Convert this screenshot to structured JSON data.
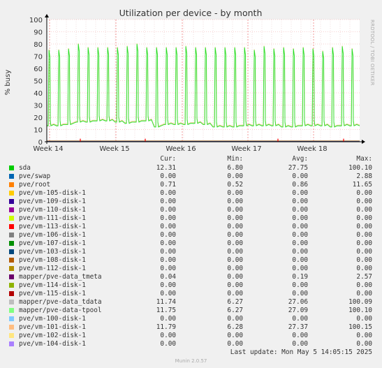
{
  "chart_data": {
    "type": "line",
    "title": "Utilization per device - by month",
    "ylabel": "% busy",
    "xlabel": "",
    "ylim": [
      0,
      100
    ],
    "yticks": [
      "0",
      "10",
      "20",
      "30",
      "40",
      "50",
      "60",
      "70",
      "80",
      "90",
      "100"
    ],
    "xticks": [
      "Week 14",
      "Week 15",
      "Week 16",
      "Week 17",
      "Week 18"
    ],
    "grid": true,
    "days": 32,
    "series": [
      {
        "name": "sda",
        "color": "#00cc00",
        "base": [
          13,
          13,
          14,
          16,
          16,
          17,
          17,
          16,
          15,
          16,
          17,
          12,
          14,
          14,
          14,
          15,
          14,
          12,
          12,
          12,
          13,
          13,
          13,
          13,
          12,
          12,
          13,
          13,
          13,
          12,
          13,
          13
        ],
        "peak": [
          75,
          75,
          76,
          80,
          77,
          77,
          77,
          77,
          78,
          80,
          77,
          77,
          77,
          77,
          78,
          77,
          77,
          77,
          77,
          77,
          77,
          75,
          78,
          76,
          77,
          76,
          77,
          76,
          74,
          77,
          78,
          76
        ]
      },
      {
        "name": "pve/vm-101-disk-1",
        "color": "#ffbd80"
      },
      {
        "name": "mapper/pve-data-tpool",
        "color": "#80ff80"
      }
    ],
    "near_zero_series": [
      {
        "name": "pve/root",
        "color": "#ff8000"
      },
      {
        "name": "pve/swap",
        "color": "#0066b3"
      },
      {
        "name": "pve/vm-113-disk-1",
        "color": "#ff0000"
      }
    ]
  },
  "legend": {
    "headers": {
      "cur": "Cur:",
      "min": "Min:",
      "avg": "Avg:",
      "max": "Max:"
    },
    "rows": [
      {
        "name": "sda",
        "color": "#00cc00",
        "cur": "12.31",
        "min": "6.80",
        "avg": "27.75",
        "max": "100.10"
      },
      {
        "name": "pve/swap",
        "color": "#0066b3",
        "cur": "0.00",
        "min": "0.00",
        "avg": "0.00",
        "max": "2.88"
      },
      {
        "name": "pve/root",
        "color": "#ff8000",
        "cur": "0.71",
        "min": "0.52",
        "avg": "0.86",
        "max": "11.65"
      },
      {
        "name": "pve/vm-105-disk-1",
        "color": "#ffcc00",
        "cur": "0.00",
        "min": "0.00",
        "avg": "0.00",
        "max": "0.00"
      },
      {
        "name": "pve/vm-109-disk-1",
        "color": "#330099",
        "cur": "0.00",
        "min": "0.00",
        "avg": "0.00",
        "max": "0.00"
      },
      {
        "name": "pve/vm-110-disk-1",
        "color": "#990099",
        "cur": "0.00",
        "min": "0.00",
        "avg": "0.00",
        "max": "0.00"
      },
      {
        "name": "pve/vm-111-disk-1",
        "color": "#ccff00",
        "cur": "0.00",
        "min": "0.00",
        "avg": "0.00",
        "max": "0.00"
      },
      {
        "name": "pve/vm-113-disk-1",
        "color": "#ff0000",
        "cur": "0.00",
        "min": "0.00",
        "avg": "0.00",
        "max": "0.00"
      },
      {
        "name": "pve/vm-106-disk-1",
        "color": "#808080",
        "cur": "0.00",
        "min": "0.00",
        "avg": "0.00",
        "max": "0.00"
      },
      {
        "name": "pve/vm-107-disk-1",
        "color": "#008f00",
        "cur": "0.00",
        "min": "0.00",
        "avg": "0.00",
        "max": "0.00"
      },
      {
        "name": "pve/vm-103-disk-1",
        "color": "#00487d",
        "cur": "0.00",
        "min": "0.00",
        "avg": "0.00",
        "max": "0.00"
      },
      {
        "name": "pve/vm-108-disk-1",
        "color": "#b35a00",
        "cur": "0.00",
        "min": "0.00",
        "avg": "0.00",
        "max": "0.00"
      },
      {
        "name": "pve/vm-112-disk-1",
        "color": "#b38f00",
        "cur": "0.00",
        "min": "0.00",
        "avg": "0.00",
        "max": "0.00"
      },
      {
        "name": "mapper/pve-data_tmeta",
        "color": "#6b006b",
        "cur": "0.04",
        "min": "0.00",
        "avg": "0.19",
        "max": "2.57"
      },
      {
        "name": "pve/vm-114-disk-1",
        "color": "#8fb300",
        "cur": "0.00",
        "min": "0.00",
        "avg": "0.00",
        "max": "0.00"
      },
      {
        "name": "pve/vm-115-disk-1",
        "color": "#b30000",
        "cur": "0.00",
        "min": "0.00",
        "avg": "0.00",
        "max": "0.00"
      },
      {
        "name": "mapper/pve-data_tdata",
        "color": "#bebebe",
        "cur": "11.74",
        "min": "6.27",
        "avg": "27.06",
        "max": "100.09"
      },
      {
        "name": "mapper/pve-data-tpool",
        "color": "#80ff80",
        "cur": "11.75",
        "min": "6.27",
        "avg": "27.09",
        "max": "100.10"
      },
      {
        "name": "pve/vm-100-disk-1",
        "color": "#80c9ff",
        "cur": "0.00",
        "min": "0.00",
        "avg": "0.00",
        "max": "0.00"
      },
      {
        "name": "pve/vm-101-disk-1",
        "color": "#ffbd80",
        "cur": "11.79",
        "min": "6.28",
        "avg": "27.37",
        "max": "100.15"
      },
      {
        "name": "pve/vm-102-disk-1",
        "color": "#ffe680",
        "cur": "0.00",
        "min": "0.00",
        "avg": "0.00",
        "max": "0.00"
      },
      {
        "name": "pve/vm-104-disk-1",
        "color": "#aa80ff",
        "cur": "0.00",
        "min": "0.00",
        "avg": "0.00",
        "max": "0.00"
      }
    ]
  },
  "footer": {
    "last_update": "Last update: Mon May  5 14:05:15 2025",
    "munin": "Munin 2.0.57",
    "rrdtool": "RRDTOOL / TOBI OETIKER"
  }
}
